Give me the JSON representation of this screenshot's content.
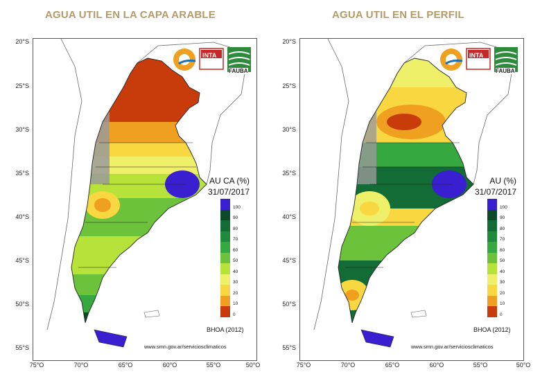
{
  "panels": [
    {
      "id": "capa-arable",
      "title": "AGUA UTIL EN LA CAPA ARABLE",
      "variable_label": "AU CA (%)",
      "date": "31/07/2017",
      "source": "BHOA (2012)",
      "url": "www.smn.gov.ar/serviciosclimaticos",
      "logos": [
        "INTA",
        "FAUBA"
      ]
    },
    {
      "id": "perfil",
      "title": "AGUA UTIL EN EL PERFIL",
      "variable_label": "AU (%)",
      "date": "31/07/2017",
      "source": "BHOA (2012)",
      "url": "www.smn.gov.ar/serviciosclimaticos",
      "logos": [
        "INTA",
        "FAUBA"
      ]
    }
  ],
  "axes": {
    "lat_labels": [
      "20°S",
      "25°S",
      "30°S",
      "35°S",
      "40°S",
      "45°S",
      "50°S",
      "55°S"
    ],
    "lon_labels": [
      "75°O",
      "70°O",
      "65°O",
      "60°O",
      "55°O",
      "50°O"
    ]
  },
  "legend": {
    "labels": [
      "100",
      "90",
      "80",
      "70",
      "60",
      "50",
      "40",
      "30",
      "20",
      "10",
      "0"
    ],
    "colors": [
      "#3a1fd0",
      "#0c4a2a",
      "#136b35",
      "#1f8a3c",
      "#35a83f",
      "#6cc23a",
      "#b7e23a",
      "#eef06a",
      "#f8d740",
      "#f0a020",
      "#c83c0c"
    ]
  },
  "colors": {
    "title": "#b49a68",
    "border": "#555555",
    "mountain": "#9a9a9a"
  }
}
